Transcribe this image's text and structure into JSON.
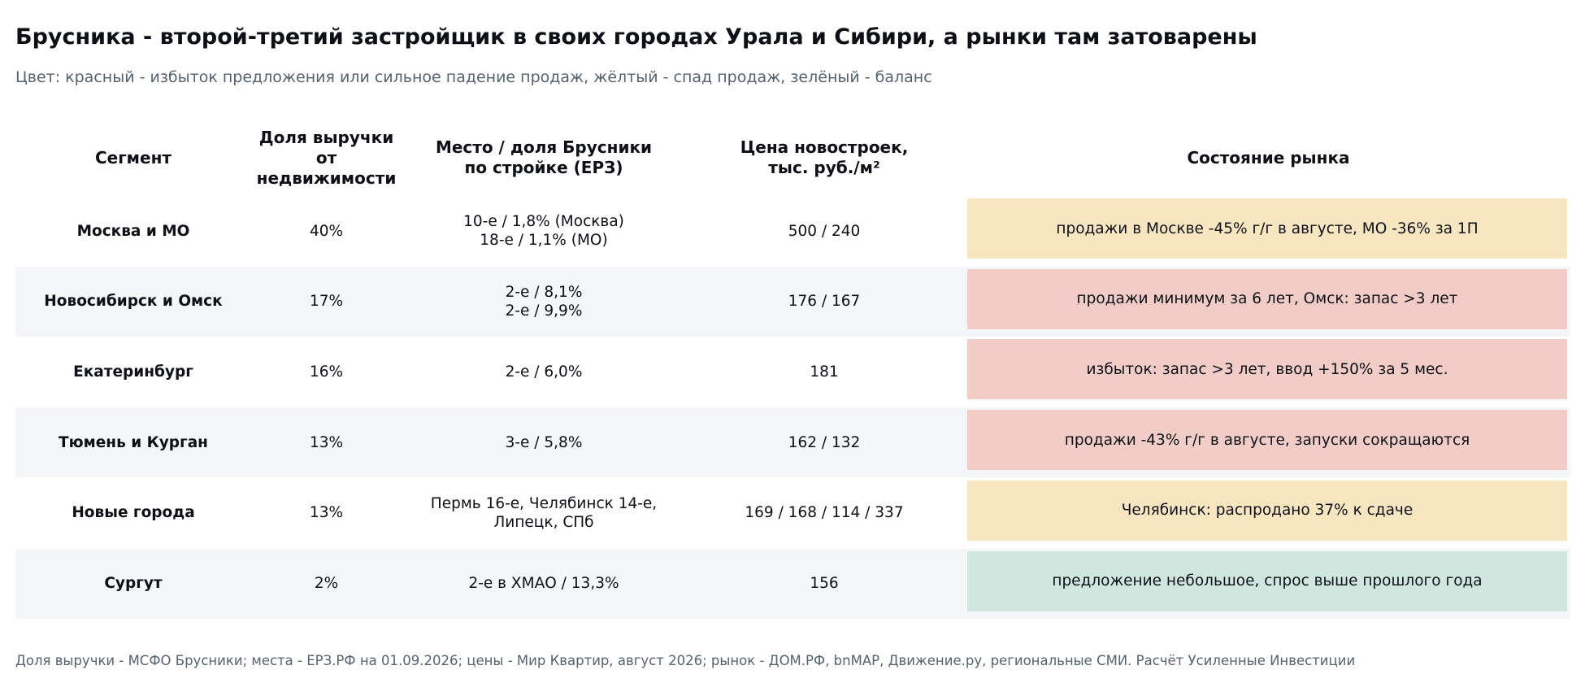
{
  "title": "Брусника - второй-третий застройщик в своих городах Урала и Сибири, а рынки там затоварены",
  "subtitle": "Цвет: красный - избыток предложения или сильное падение продаж, жёлтый - спад продаж, зелёный - баланс",
  "source": "Доля выручки - МСФО Брусники; места - ЕРЗ.РФ на 01.09.2026; цены - Мир Квартир, август 2026; рынок - ДОМ.РФ, bnMAP, Движение.ру, региональные СМИ. Расчёт Усиленные Инвестиции",
  "colors": {
    "red": "#f2cdc8",
    "yellow": "#f7e6c0",
    "green": "#cfe7de",
    "row_alt": "#f5f6f8"
  },
  "chart_data": {
    "type": "table",
    "columns": [
      "Сегмент",
      "Доля выручки\nот недвижимости",
      "Место / доля Брусники\nпо стройке (ЕРЗ)",
      "Цена новостроек,\nтыс. руб./м²",
      "Состояние рынка"
    ],
    "rows": [
      {
        "segment": "Москва и МО",
        "revenue_share": "40%",
        "rank_share": "10-е / 1,8% (Москва)\n18-е / 1,1% (МО)",
        "price": "500 / 240",
        "market": "продажи в Москве -45% г/г в августе, МО -36% за 1П",
        "status": "yellow"
      },
      {
        "segment": "Новосибирск и Омск",
        "revenue_share": "17%",
        "rank_share": "2-е / 8,1%\n2-е / 9,9%",
        "price": "176 / 167",
        "market": "продажи минимум за 6 лет, Омск: запас >3 лет",
        "status": "red"
      },
      {
        "segment": "Екатеринбург",
        "revenue_share": "16%",
        "rank_share": "2-е / 6,0%",
        "price": "181",
        "market": "избыток: запас >3 лет, ввод +150% за 5 мес.",
        "status": "red"
      },
      {
        "segment": "Тюмень и Курган",
        "revenue_share": "13%",
        "rank_share": "3-е / 5,8%",
        "price": "162 / 132",
        "market": "продажи -43% г/г в августе, запуски сокращаются",
        "status": "red"
      },
      {
        "segment": "Новые города",
        "revenue_share": "13%",
        "rank_share": "Пермь 16-е, Челябинск 14-е,\nЛипецк, СПб",
        "price": "169 / 168 / 114 / 337",
        "market": "Челябинск: распродано 37% к сдаче",
        "status": "yellow"
      },
      {
        "segment": "Сургут",
        "revenue_share": "2%",
        "rank_share": "2-е в ХМАО / 13,3%",
        "price": "156",
        "market": "предложение небольшое, спрос выше прошлого года",
        "status": "green"
      }
    ]
  }
}
